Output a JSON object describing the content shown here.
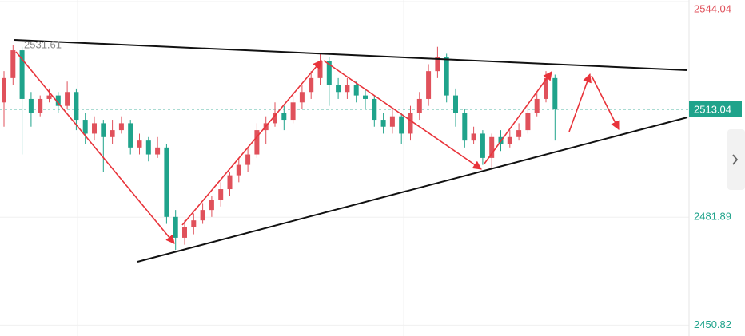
{
  "chart_data": {
    "type": "candlestick",
    "open": [
      2515,
      2522,
      2530,
      2516,
      2512,
      2516,
      2517,
      2514,
      2518,
      2510,
      2506,
      2509,
      2505,
      2507,
      2509,
      2502,
      2504,
      2500,
      2502,
      2482,
      2476,
      2479,
      2481,
      2484,
      2487,
      2490,
      2494,
      2497,
      2500,
      2507,
      2509,
      2512,
      2510,
      2515,
      2518,
      2522,
      2527,
      2520,
      2518,
      2520,
      2517,
      2516,
      2510,
      2508,
      2511,
      2506,
      2512,
      2516,
      2524,
      2528,
      2517,
      2512,
      2504,
      2506,
      2499,
      2505,
      2503,
      2505,
      2507,
      2512,
      2516,
      2522
    ],
    "high": [
      2524,
      2531.61,
      2531,
      2518,
      2517,
      2519,
      2518,
      2521,
      2519,
      2512,
      2511,
      2510,
      2510,
      2511,
      2510,
      2506,
      2505,
      2505,
      2503,
      2484,
      2481,
      2483,
      2486,
      2488,
      2492,
      2495,
      2499,
      2502,
      2509,
      2511,
      2515,
      2514,
      2517,
      2520,
      2524,
      2529,
      2528,
      2522,
      2522,
      2521,
      2519,
      2517,
      2512,
      2513,
      2512,
      2514,
      2518,
      2526,
      2531,
      2529,
      2519,
      2513,
      2508,
      2507,
      2506,
      2507,
      2507,
      2509,
      2514,
      2518,
      2524,
      2523
    ],
    "low": [
      2508,
      2520,
      2500,
      2508,
      2511,
      2515,
      2512,
      2513,
      2507,
      2503,
      2504,
      2495,
      2503,
      2506,
      2500,
      2500,
      2498,
      2499,
      2480,
      2472.5,
      2474,
      2477,
      2480,
      2482,
      2485,
      2488,
      2492,
      2495,
      2499,
      2503,
      2508,
      2507,
      2509,
      2513,
      2516,
      2520,
      2514,
      2516,
      2516,
      2515,
      2513,
      2508,
      2506,
      2506,
      2503,
      2504,
      2510,
      2514,
      2522,
      2515,
      2508,
      2502,
      2503,
      2497,
      2496,
      2501,
      2502,
      2504,
      2506,
      2511,
      2515,
      2504
    ],
    "close": [
      2522,
      2530,
      2516,
      2512,
      2516,
      2517,
      2514,
      2518,
      2510,
      2506,
      2509,
      2505,
      2507,
      2509,
      2502,
      2504,
      2500,
      2502,
      2482,
      2476,
      2479,
      2481,
      2484,
      2487,
      2490,
      2494,
      2497,
      2500,
      2507,
      2509,
      2512,
      2510,
      2515,
      2518,
      2522,
      2527,
      2520,
      2518,
      2520,
      2517,
      2516,
      2510,
      2508,
      2511,
      2506,
      2512,
      2516,
      2524,
      2528,
      2517,
      2512,
      2504,
      2506,
      2499,
      2505,
      2503,
      2505,
      2507,
      2512,
      2516,
      2522,
      2513.04
    ],
    "up_color": "#e0515b",
    "down_color": "#1fa38b",
    "ylim": [
      2447.7,
      2544.5
    ],
    "yticks": [
      2544.04,
      2481.89,
      2450.82
    ],
    "grid": true
  }
}
